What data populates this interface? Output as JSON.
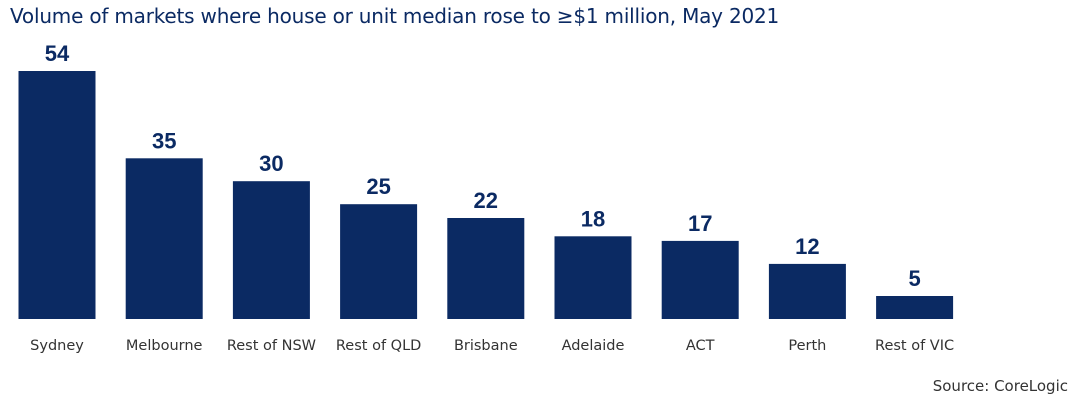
{
  "title": "Volume of markets where house or unit median rose to ≥$1 million, May 2021",
  "source": "Source: CoreLogic",
  "colors": {
    "bar": "#0b2a63",
    "title": "#0b2a63",
    "text": "#333333"
  },
  "chart_data": {
    "type": "bar",
    "title": "Volume of markets where house or unit median rose to ≥$1 million, May 2021",
    "xlabel": "",
    "ylabel": "",
    "categories": [
      "Sydney",
      "Melbourne",
      "Rest of NSW",
      "Rest of QLD",
      "Brisbane",
      "Adelaide",
      "ACT",
      "Perth",
      "Rest of VIC"
    ],
    "values": [
      54,
      35,
      30,
      25,
      22,
      18,
      17,
      12,
      5
    ],
    "ylim": [
      0,
      54
    ],
    "grid": false,
    "legend": "none",
    "data_labels": true
  }
}
